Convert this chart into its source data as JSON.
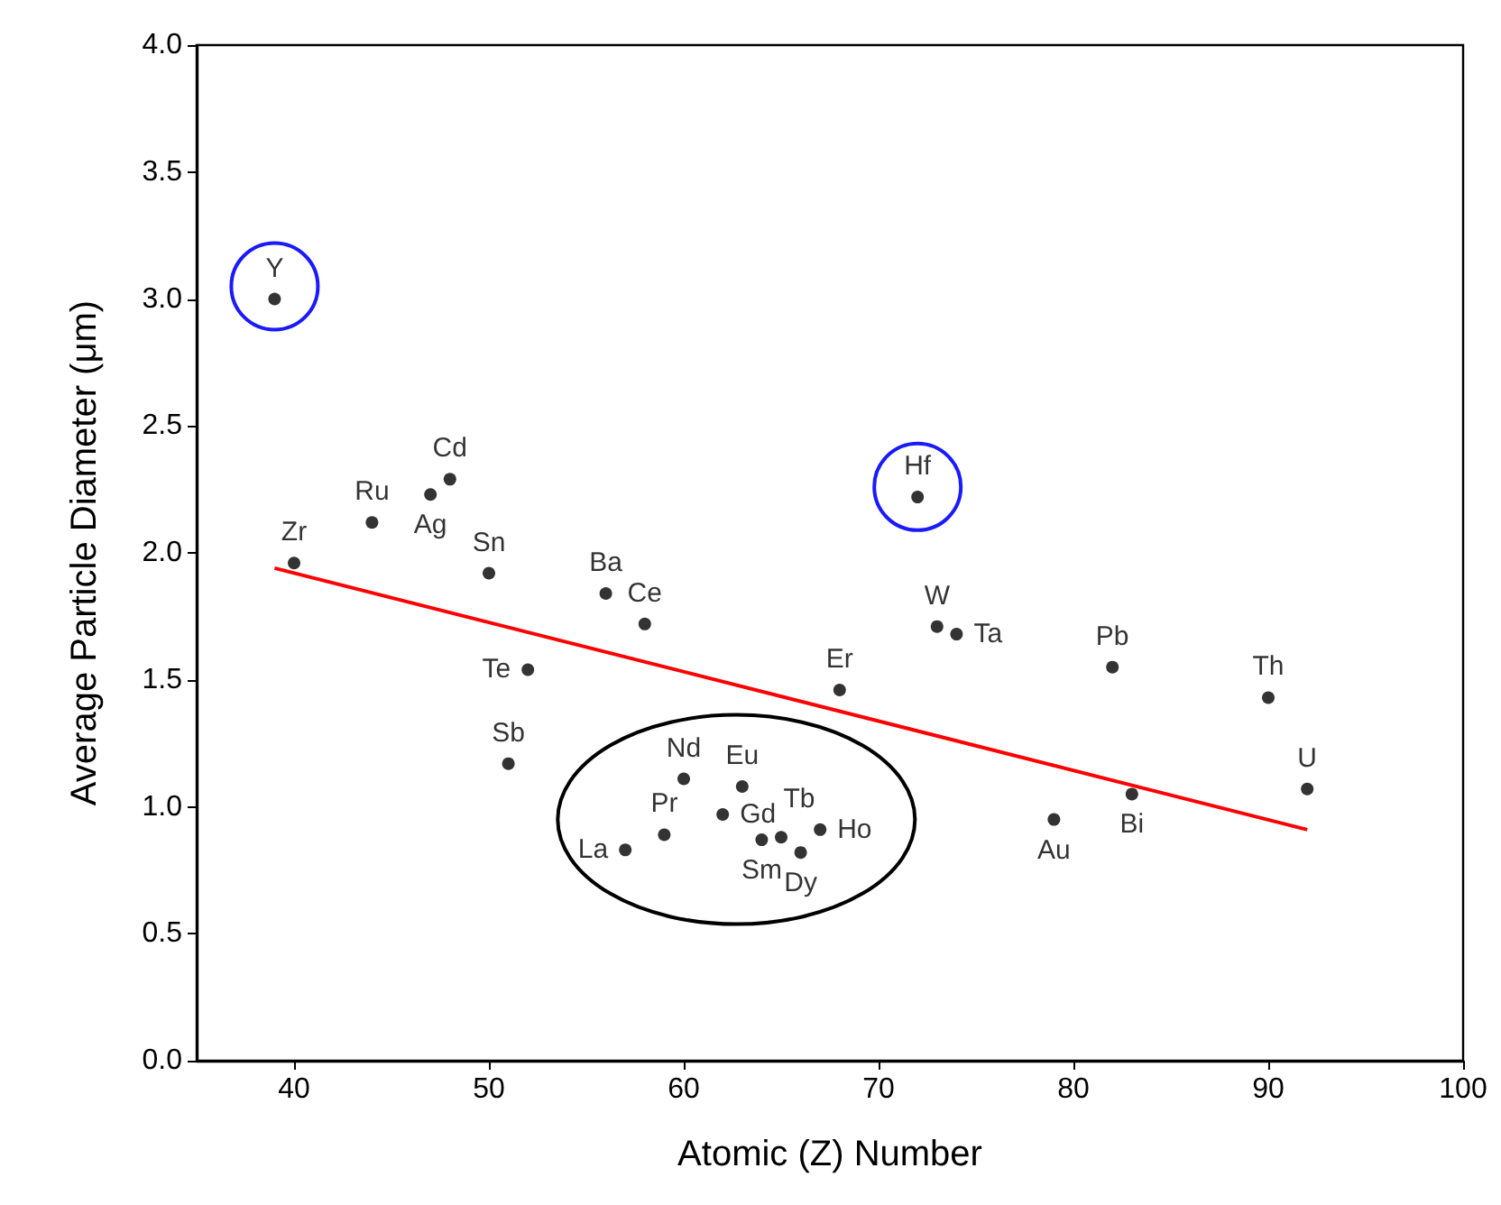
{
  "chart_data": {
    "type": "scatter",
    "xlabel": "Atomic (Z) Number",
    "ylabel": "Average Particle Diameter (μm)",
    "xlim": [
      35,
      100
    ],
    "xticks": [
      40,
      50,
      60,
      70,
      80,
      90,
      100
    ],
    "ylim": [
      0,
      4
    ],
    "yticks": [
      {
        "value": 0,
        "label": "0.0"
      },
      {
        "value": 0.5,
        "label": "0.5"
      },
      {
        "value": 1,
        "label": "1.0"
      },
      {
        "value": 1.5,
        "label": "1.5"
      },
      {
        "value": 2,
        "label": "2.0"
      },
      {
        "value": 2.5,
        "label": "2.5"
      },
      {
        "value": 3,
        "label": "3.0"
      },
      {
        "value": 3.5,
        "label": "3.5"
      },
      {
        "value": 4,
        "label": "4.0"
      }
    ],
    "grid": false,
    "marker": "circle",
    "series": [
      {
        "color": "#000000",
        "x": [
          39,
          40,
          44,
          47,
          48,
          50,
          51,
          52,
          56,
          57,
          58,
          59,
          60,
          62,
          63,
          64,
          65,
          66,
          67,
          68,
          72,
          73,
          74,
          79,
          82,
          83,
          90,
          92
        ],
        "values": [
          3.0,
          1.96,
          2.12,
          2.23,
          2.29,
          1.92,
          1.17,
          1.54,
          1.84,
          0.83,
          1.72,
          0.89,
          1.11,
          0.97,
          1.08,
          0.87,
          0.88,
          0.82,
          0.91,
          1.46,
          2.22,
          1.71,
          1.68,
          0.95,
          1.55,
          1.05,
          1.43,
          1.07
        ],
        "value_labels": [
          "Y",
          "Zr",
          "Ru",
          "Ag",
          "Cd",
          "Sn",
          "Sb",
          "Te",
          "Ba",
          "La",
          "Ce",
          "Pr",
          "Nd",
          "Gd",
          "Eu",
          "Sm",
          "Tb",
          "Dy",
          "Ho",
          "Er",
          "Hf",
          "W",
          "Ta",
          "Au",
          "Pb",
          "Bi",
          "Th",
          "U"
        ]
      },
      {
        "type": "line",
        "color": "#ff0000",
        "x": [
          39,
          92
        ],
        "values": [
          1.94,
          0.91
        ],
        "line_style": "solid",
        "marker": "none"
      }
    ]
  }
}
